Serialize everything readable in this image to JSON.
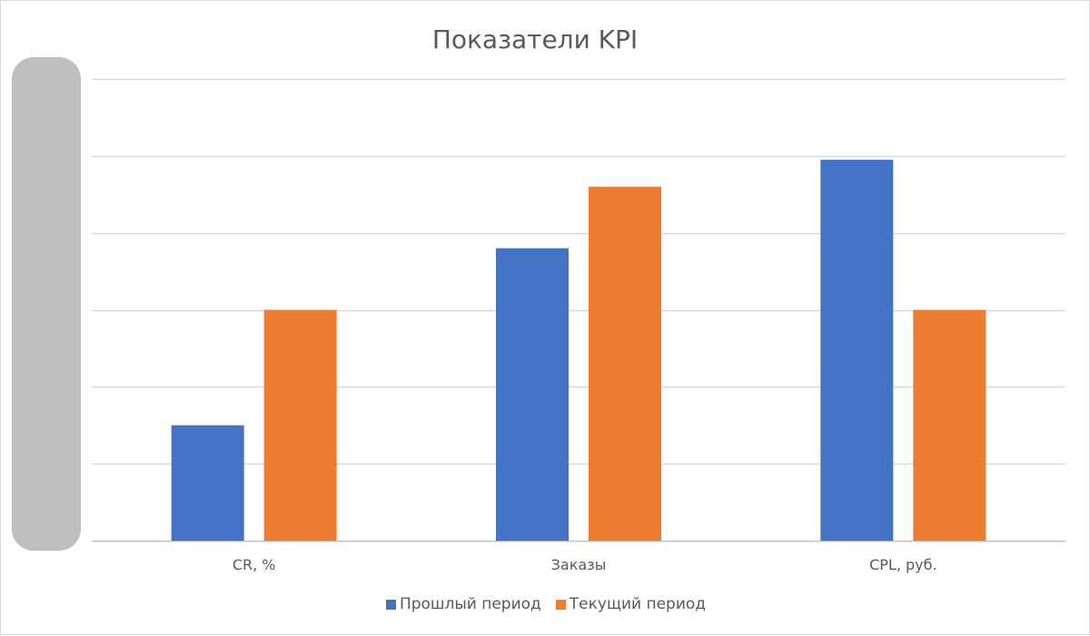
{
  "chart_data": {
    "type": "bar",
    "title": "Показатели KPI",
    "xlabel": "",
    "ylabel": "",
    "categories": [
      "CR, %",
      "Заказы",
      "CPL, руб."
    ],
    "series": [
      {
        "name": "Прошлый период",
        "values": [
          1.5,
          3.8,
          4.95
        ],
        "color": "#4472C4"
      },
      {
        "name": "Текущий период",
        "values": [
          3.0,
          4.6,
          3.0
        ],
        "color": "#ED7D31"
      }
    ],
    "ylim": [
      0,
      6
    ],
    "y_ticks": [
      0,
      1,
      2,
      3,
      4,
      5,
      6
    ],
    "y_tick_labels_visible": false,
    "grid": true,
    "legend_position": "bottom"
  }
}
